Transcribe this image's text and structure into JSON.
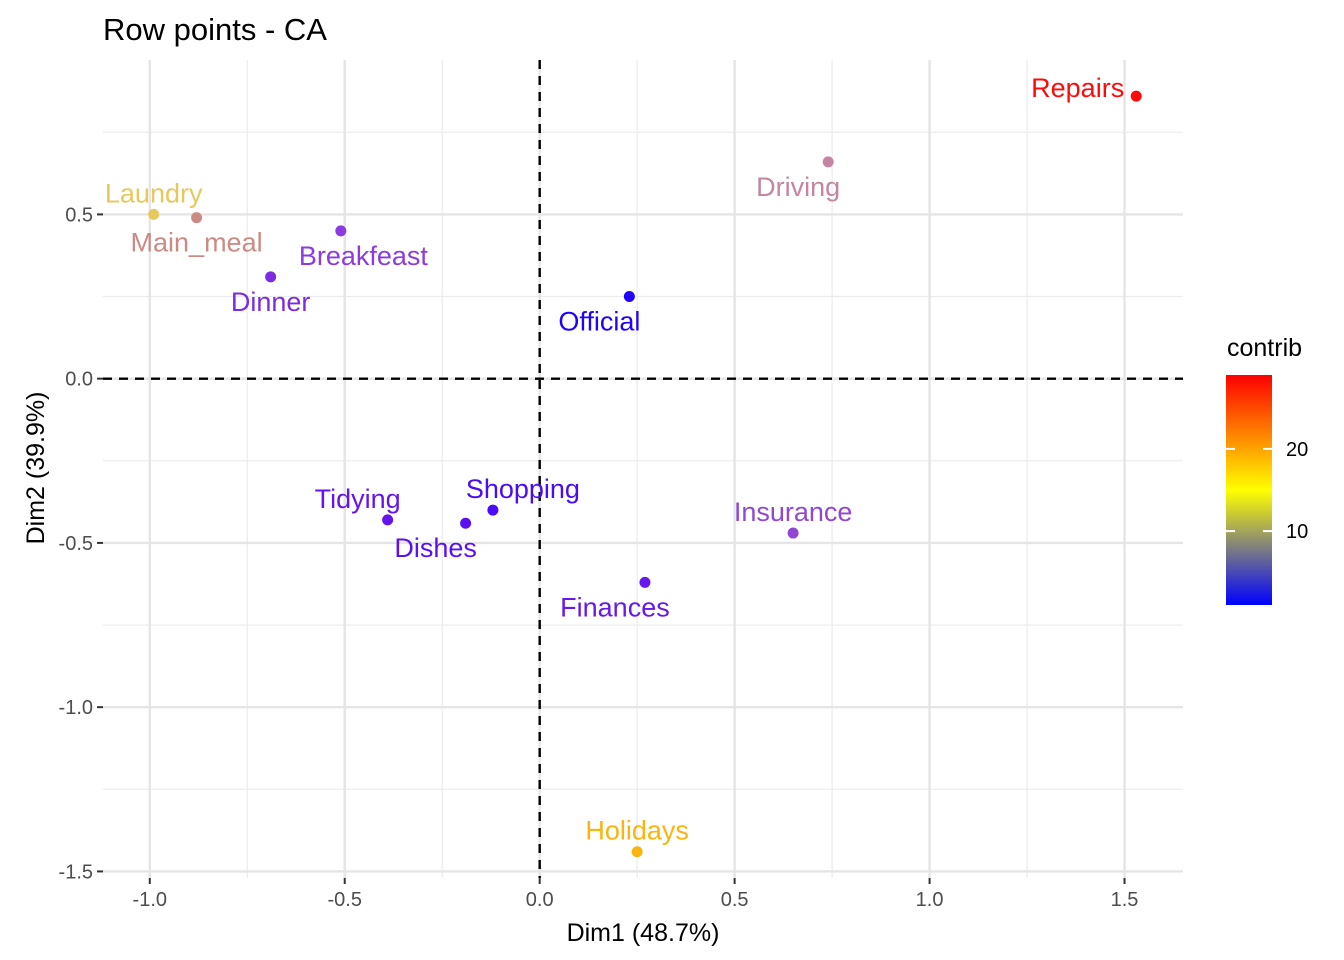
{
  "chart_data": {
    "type": "scatter",
    "title": "Row points - CA",
    "xlabel": "Dim1 (48.7%)",
    "ylabel": "Dim2 (39.9%)",
    "xlim": [
      -1.12,
      1.65
    ],
    "ylim": [
      -1.52,
      0.97
    ],
    "xticks": [
      -1.0,
      -0.5,
      0.0,
      0.5,
      1.0,
      1.5
    ],
    "xtick_labels": [
      "-1.0",
      "-0.5",
      "0.0",
      "0.5",
      "1.0",
      "1.5"
    ],
    "yticks": [
      0.5,
      0.0,
      -0.5,
      -1.0,
      -1.5
    ],
    "ytick_labels": [
      "0.5",
      "0.0",
      "-0.5",
      "-1.0",
      "-1.5"
    ],
    "grid": true,
    "reference_lines": {
      "x": 0,
      "y": 0,
      "style": "dashed"
    },
    "color_scale": {
      "name": "contrib",
      "low": "#0000ff",
      "mid": "#ffff00",
      "high": "#ff0000",
      "min": 1,
      "max": 29,
      "ticks": [
        10,
        20
      ],
      "tick_labels": [
        "10",
        "20"
      ]
    },
    "legend_placement": "right",
    "points": [
      {
        "label": "Laundry",
        "x": -0.99,
        "y": 0.5,
        "color": "#e7c85c",
        "label_pos": "above"
      },
      {
        "label": "Main_meal",
        "x": -0.88,
        "y": 0.49,
        "color": "#cc8a85",
        "label_pos": "below"
      },
      {
        "label": "Dinner",
        "x": -0.69,
        "y": 0.31,
        "color": "#7b2be3",
        "label_pos": "below"
      },
      {
        "label": "Breakfeast",
        "x": -0.51,
        "y": 0.45,
        "color": "#8b3be0",
        "label_pos": "below-right"
      },
      {
        "label": "Tidying",
        "x": -0.39,
        "y": -0.43,
        "color": "#6514ef",
        "label_pos": "above-left"
      },
      {
        "label": "Dishes",
        "x": -0.19,
        "y": -0.44,
        "color": "#5a10f2",
        "label_pos": "below-left"
      },
      {
        "label": "Shopping",
        "x": -0.12,
        "y": -0.4,
        "color": "#4a0cf5",
        "label_pos": "above-right"
      },
      {
        "label": "Official",
        "x": 0.23,
        "y": 0.25,
        "color": "#1f03fb",
        "label_pos": "below-left"
      },
      {
        "label": "Driving",
        "x": 0.74,
        "y": 0.66,
        "color": "#c585a2",
        "label_pos": "below-left"
      },
      {
        "label": "Insurance",
        "x": 0.65,
        "y": -0.47,
        "color": "#9147d4",
        "label_pos": "above"
      },
      {
        "label": "Finances",
        "x": 0.27,
        "y": -0.62,
        "color": "#6619ea",
        "label_pos": "below-left"
      },
      {
        "label": "Holidays",
        "x": 0.25,
        "y": -1.44,
        "color": "#fbb40e",
        "label_pos": "above"
      },
      {
        "label": "Repairs",
        "x": 1.53,
        "y": 0.86,
        "color": "#ff0a0a",
        "label_pos": "left"
      }
    ]
  }
}
